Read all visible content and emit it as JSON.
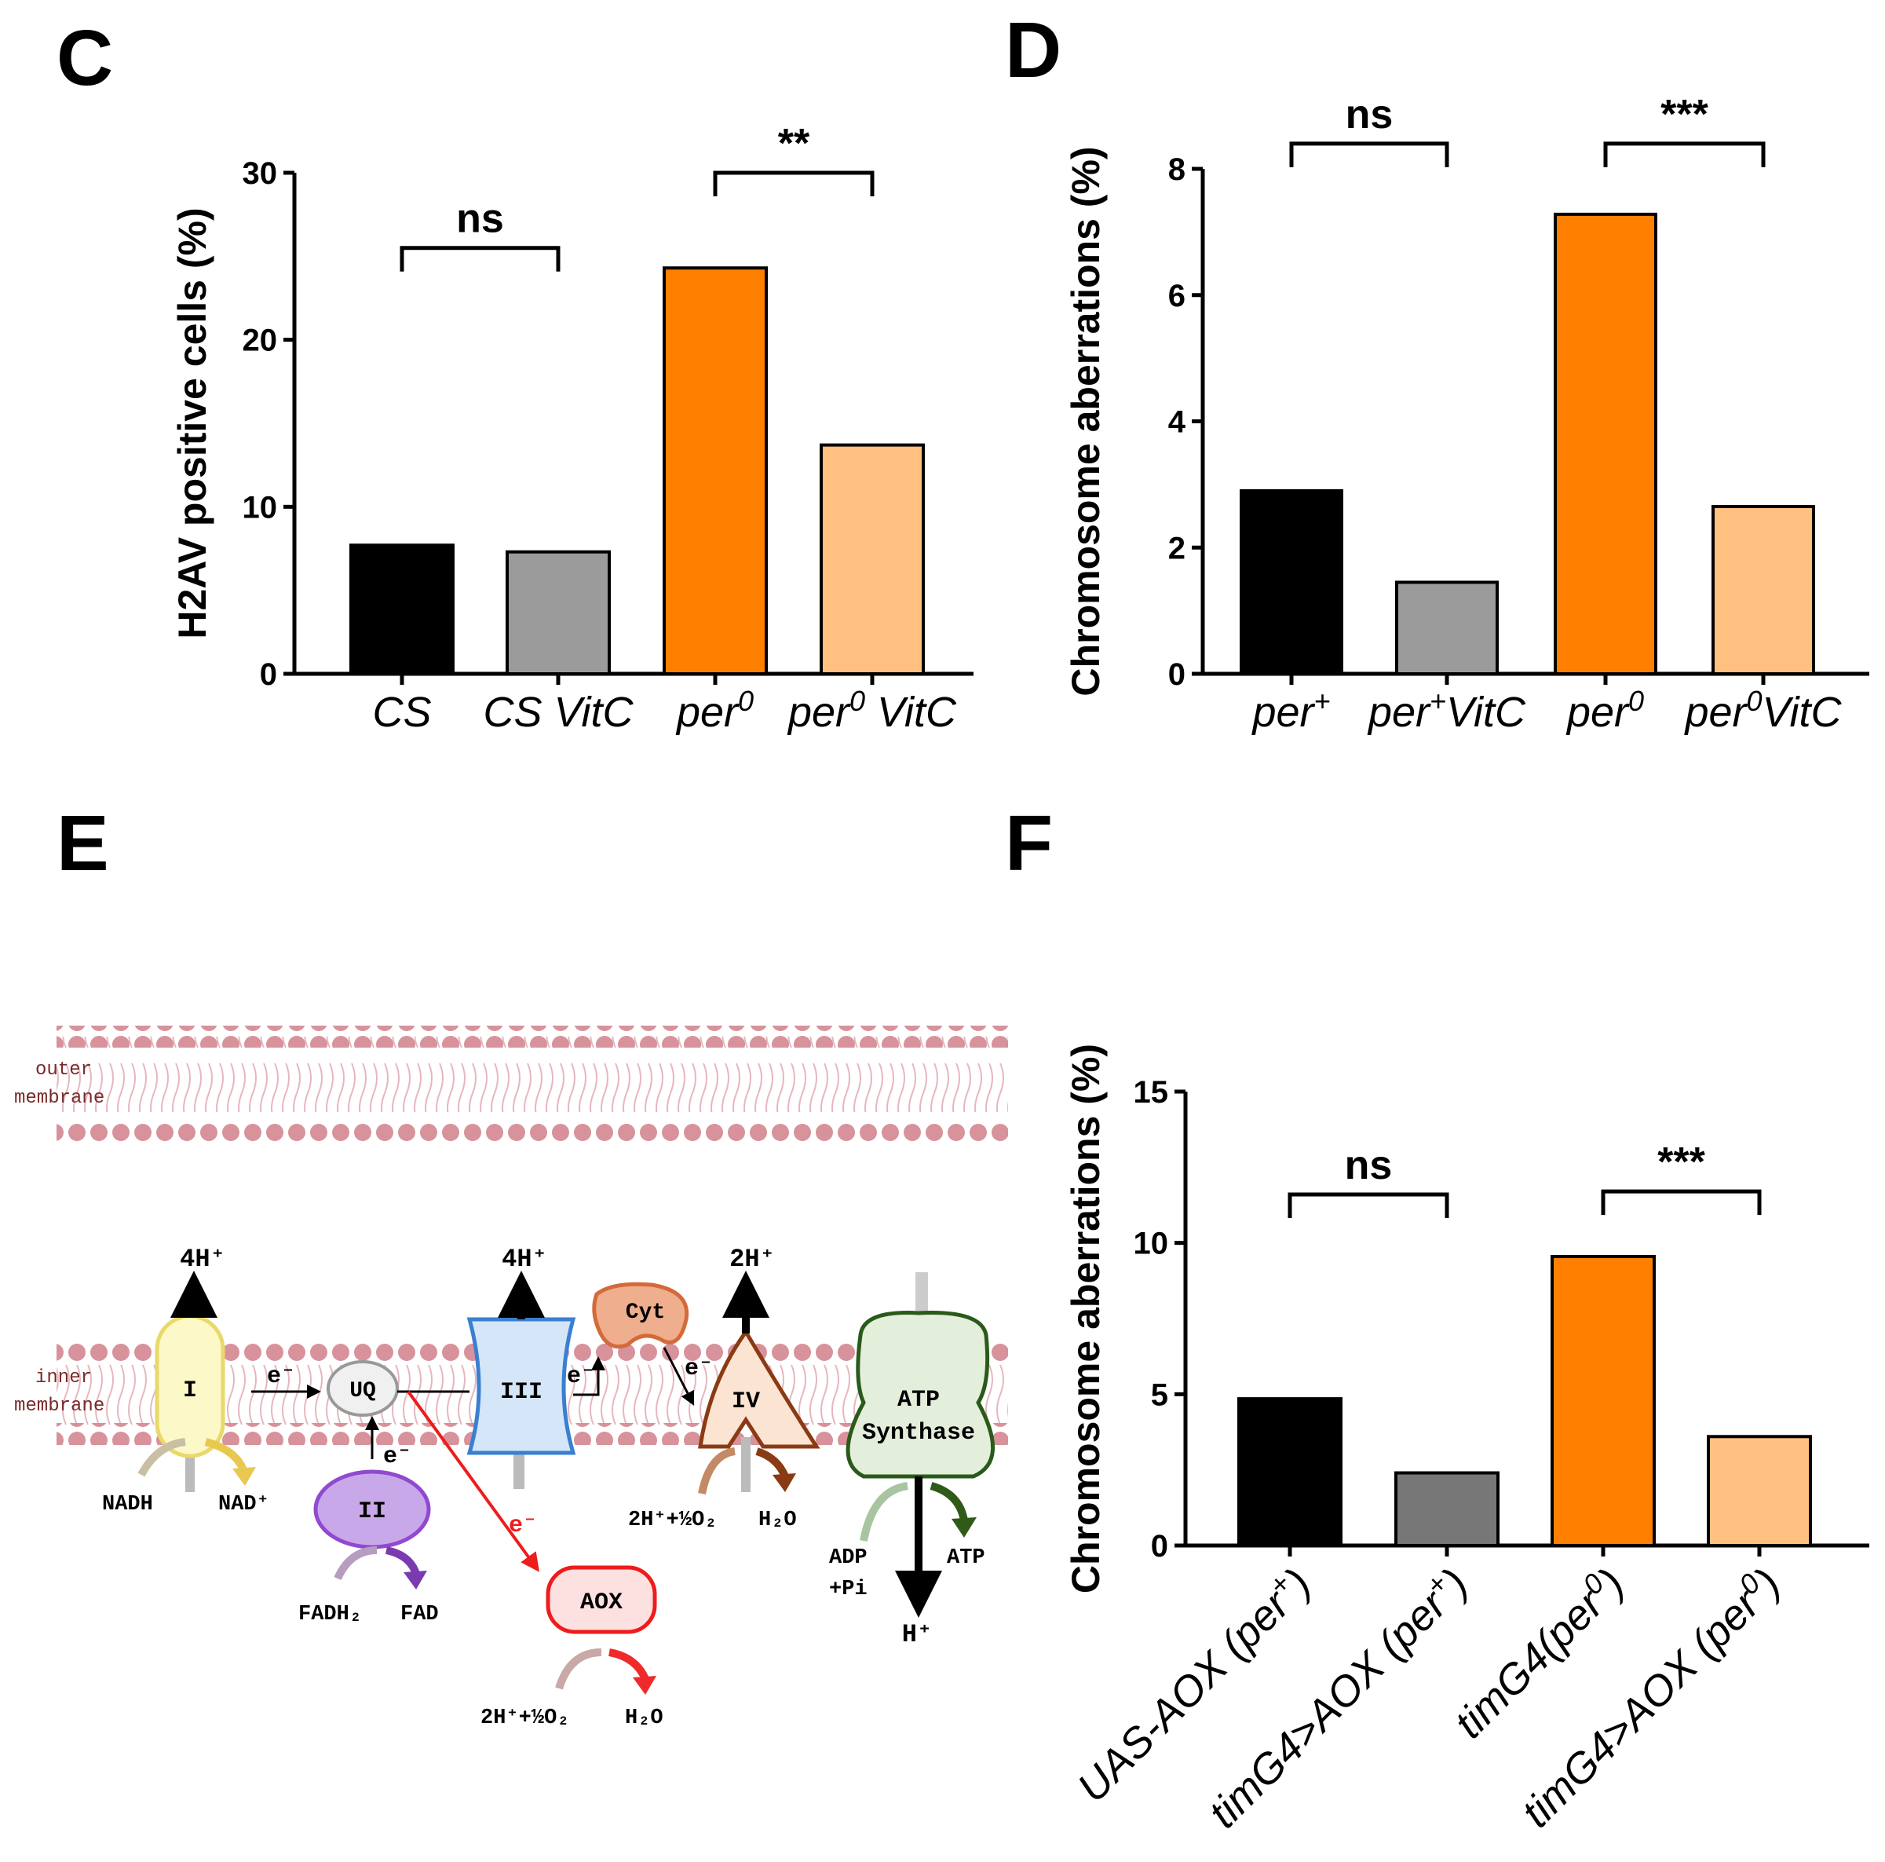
{
  "panels": {
    "C": "C",
    "D": "D",
    "E": "E",
    "F": "F"
  },
  "chart_data": [
    {
      "id": "C",
      "type": "bar",
      "categories": [
        "CS",
        "CS VitC",
        "per0",
        "per0 VitC"
      ],
      "category_labels": [
        [
          "CS",
          ""
        ],
        [
          "CS VitC",
          ""
        ],
        [
          "per",
          "0"
        ],
        [
          "per",
          "0 VitC"
        ]
      ],
      "values": [
        7.7,
        7.3,
        24.3,
        13.7
      ],
      "colors": [
        "#000000",
        "#9b9b9b",
        "#ff7f00",
        "#ffc080"
      ],
      "ylabel": "H2AV positive cells (%)",
      "ylim": [
        0,
        30
      ],
      "yticks": [
        0,
        10,
        20,
        30
      ],
      "comparisons": [
        {
          "from": 0,
          "to": 1,
          "label": "ns",
          "value": 25.5
        },
        {
          "from": 2,
          "to": 3,
          "label": "**",
          "value": 30.0
        }
      ]
    },
    {
      "id": "D",
      "type": "bar",
      "categories": [
        "per+",
        "per+ VitC",
        "per0",
        "per0 VitC"
      ],
      "category_labels": [
        [
          "per",
          "+"
        ],
        [
          "per",
          "+VitC"
        ],
        [
          "per",
          "0"
        ],
        [
          "per",
          "0VitC"
        ]
      ],
      "values": [
        2.9,
        1.45,
        7.28,
        2.65
      ],
      "colors": [
        "#000000",
        "#9b9b9b",
        "#ff7f00",
        "#ffc080"
      ],
      "ylabel": "Chromosome aberrations (%)",
      "ylim": [
        0,
        8
      ],
      "yticks": [
        0,
        2,
        4,
        6,
        8
      ],
      "comparisons": [
        {
          "from": 0,
          "to": 1,
          "label": "ns",
          "value": 8.4
        },
        {
          "from": 2,
          "to": 3,
          "label": "***",
          "value": 8.4
        }
      ]
    },
    {
      "id": "F",
      "type": "bar",
      "categories": [
        "UAS-AOX (per+)",
        "timG4>AOX (per+)",
        "timG4(per0)",
        "timG4>AOX (per0)"
      ],
      "category_labels": [
        [
          "UAS-AOX (per",
          "+",
          ")"
        ],
        [
          "timG4>AOX (per",
          "+",
          ")"
        ],
        [
          "timG4(per",
          "0",
          ")"
        ],
        [
          "timG4>AOX (per",
          "0",
          ")"
        ]
      ],
      "values": [
        4.85,
        2.4,
        9.55,
        3.6
      ],
      "colors": [
        "#000000",
        "#777777",
        "#ff7f00",
        "#ffc080"
      ],
      "ylabel": "Chromosome aberrations (%)",
      "ylim": [
        0,
        15
      ],
      "yticks": [
        0,
        5,
        10,
        15
      ],
      "comparisons": [
        {
          "from": 0,
          "to": 1,
          "label": "ns",
          "value": 11.6
        },
        {
          "from": 2,
          "to": 3,
          "label": "***",
          "value": 11.7
        }
      ]
    }
  ],
  "diagram": {
    "outer_membrane": [
      "outer",
      "membrane"
    ],
    "inner_membrane": [
      "inner",
      "membrane"
    ],
    "complexes": {
      "I": "I",
      "II": "II",
      "III": "III",
      "IV": "IV",
      "UQ": "UQ",
      "Cyt": "Cyt",
      "AOX": "AOX",
      "ATP1": "ATP",
      "ATP2": "Synthase"
    },
    "protons": {
      "I": "4H⁺",
      "III": "4H⁺",
      "IV": "2H⁺",
      "ATP": "H⁺"
    },
    "electron": "e⁻",
    "substrates": {
      "NADH": "NADH",
      "NAD": "NAD⁺",
      "FADH2": "FADH₂",
      "FAD": "FAD",
      "IV_in": "2H⁺+½O₂",
      "IV_out": "H₂O",
      "AOX_in": "2H⁺+½O₂",
      "AOX_out": "H₂O",
      "ADP1": "ADP",
      "ADP2": "+Pi",
      "ATP": "ATP"
    }
  }
}
